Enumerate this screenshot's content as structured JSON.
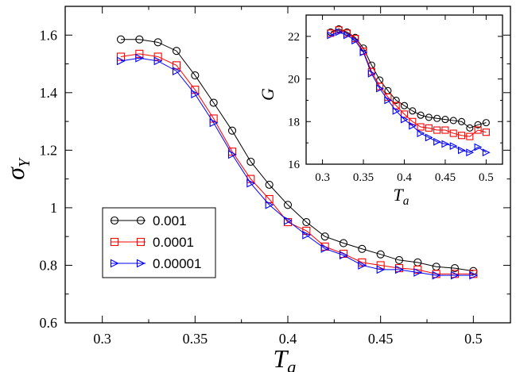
{
  "chart_data": [
    {
      "type": "line",
      "name": "main",
      "xlabel": "T",
      "xlabel_sub": "a",
      "ylabel": "σ",
      "ylabel_sub": "Y",
      "xlim": [
        0.28,
        0.52
      ],
      "ylim": [
        0.6,
        1.7
      ],
      "xticks": [
        0.3,
        0.35,
        0.4,
        0.45,
        0.5
      ],
      "xtick_labels": [
        "0.3",
        "0.35",
        "0.4",
        "0.45",
        "0.5"
      ],
      "yticks": [
        0.6,
        0.8,
        1.0,
        1.2,
        1.4,
        1.6
      ],
      "ytick_labels": [
        "0.6",
        "0.8",
        "1",
        "1.2",
        "1.4",
        "1.6"
      ],
      "legend_position": "bottom-left",
      "x": [
        0.31,
        0.32,
        0.33,
        0.34,
        0.35,
        0.36,
        0.37,
        0.38,
        0.39,
        0.4,
        0.41,
        0.42,
        0.43,
        0.44,
        0.45,
        0.46,
        0.47,
        0.48,
        0.49,
        0.5
      ],
      "series": [
        {
          "name": "0.001",
          "color": "#000000",
          "marker": "circle",
          "values": [
            1.585,
            1.585,
            1.575,
            1.545,
            1.46,
            1.365,
            1.268,
            1.16,
            1.08,
            1.01,
            0.95,
            0.9,
            0.877,
            0.857,
            0.838,
            0.818,
            0.81,
            0.795,
            0.79,
            0.78
          ]
        },
        {
          "name": "0.0001",
          "color": "#ff0000",
          "marker": "square",
          "values": [
            1.525,
            1.535,
            1.525,
            1.495,
            1.41,
            1.31,
            1.195,
            1.1,
            1.03,
            0.95,
            0.92,
            0.865,
            0.84,
            0.81,
            0.8,
            0.79,
            0.785,
            0.77,
            0.77,
            0.77
          ]
        },
        {
          "name": "0.00001",
          "color": "#0000ff",
          "marker": "triangle-right",
          "values": [
            1.51,
            1.52,
            1.51,
            1.475,
            1.395,
            1.295,
            1.185,
            1.085,
            1.01,
            0.955,
            0.905,
            0.858,
            0.835,
            0.8,
            0.785,
            0.785,
            0.775,
            0.765,
            0.765,
            0.765
          ]
        }
      ]
    },
    {
      "type": "line",
      "name": "inset",
      "xlabel": "T",
      "xlabel_sub": "a",
      "ylabel": "G",
      "xlim": [
        0.28,
        0.52
      ],
      "ylim": [
        16,
        23
      ],
      "xticks": [
        0.3,
        0.35,
        0.4,
        0.45,
        0.5
      ],
      "xtick_labels": [
        "0.3",
        "0.35",
        "0.4",
        "0.45",
        "0.5"
      ],
      "yticks": [
        16,
        18,
        20,
        22
      ],
      "ytick_labels": [
        "16",
        "18",
        "20",
        "22"
      ],
      "x": [
        0.31,
        0.32,
        0.33,
        0.34,
        0.35,
        0.36,
        0.37,
        0.38,
        0.39,
        0.4,
        0.41,
        0.42,
        0.43,
        0.44,
        0.45,
        0.46,
        0.47,
        0.48,
        0.49,
        0.5
      ],
      "series": [
        {
          "name": "0.001",
          "color": "#000000",
          "marker": "circle",
          "values": [
            22.2,
            22.35,
            22.2,
            21.95,
            21.45,
            20.65,
            19.95,
            19.45,
            19.0,
            18.75,
            18.5,
            18.3,
            18.2,
            18.15,
            18.1,
            18.05,
            18.0,
            17.7,
            17.85,
            17.95
          ]
        },
        {
          "name": "0.0001",
          "color": "#ff0000",
          "marker": "square",
          "values": [
            22.15,
            22.3,
            22.15,
            21.9,
            21.3,
            20.35,
            19.65,
            19.15,
            18.75,
            18.35,
            18.0,
            17.75,
            17.7,
            17.6,
            17.6,
            17.45,
            17.35,
            17.3,
            17.6,
            17.5
          ]
        },
        {
          "name": "0.00001",
          "color": "#0000ff",
          "marker": "triangle-right",
          "values": [
            22.05,
            22.2,
            22.05,
            21.8,
            21.25,
            20.25,
            19.55,
            19.0,
            18.5,
            18.1,
            17.8,
            17.45,
            17.25,
            17.05,
            16.95,
            16.85,
            16.65,
            16.55,
            16.8,
            16.55
          ]
        }
      ]
    }
  ]
}
